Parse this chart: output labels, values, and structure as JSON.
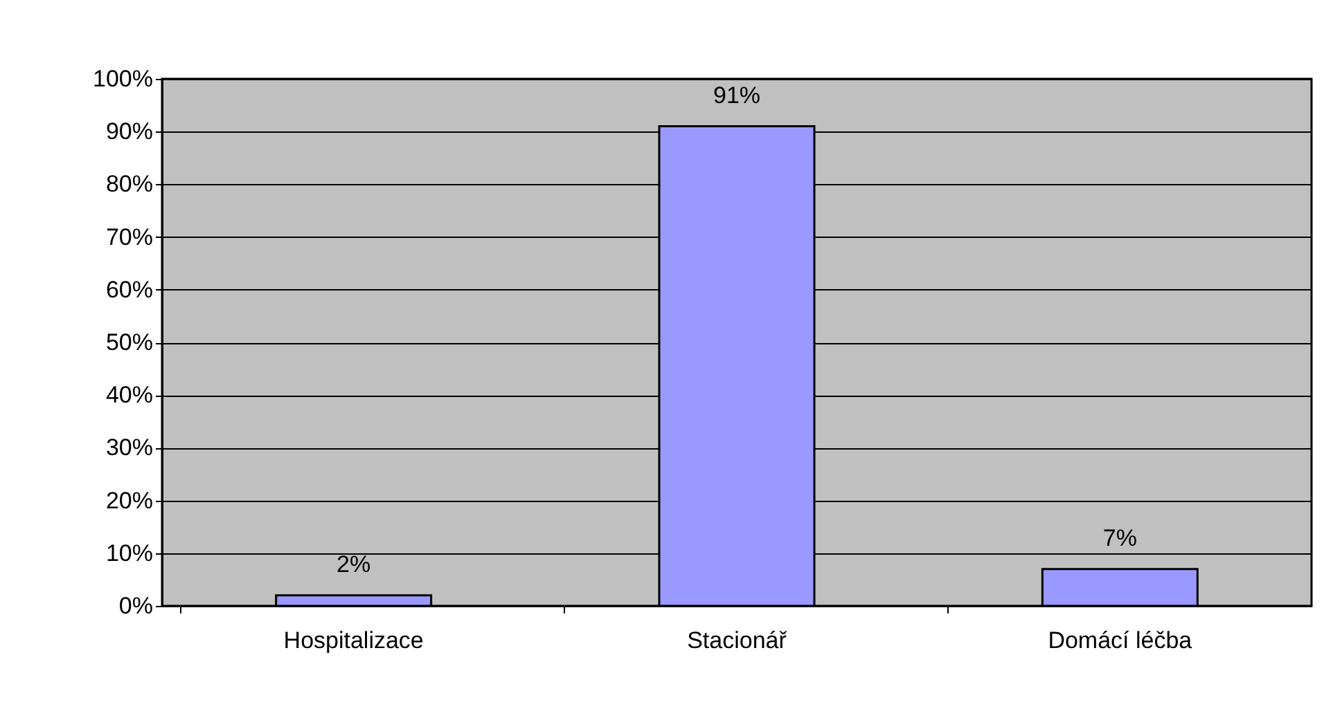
{
  "chart_data": {
    "type": "bar",
    "categories": [
      "Hospitalizace",
      "Stacionář",
      "Domácí léčba"
    ],
    "values": [
      2,
      91,
      7
    ],
    "color": "#9999ff",
    "value_labels": [
      "2%",
      "91%",
      "7%"
    ],
    "ylim": [
      0,
      100
    ],
    "yticks": [
      {
        "value": 0,
        "label": "0%"
      },
      {
        "value": 10,
        "label": "10%"
      },
      {
        "value": 20,
        "label": "20%"
      },
      {
        "value": 30,
        "label": "30%"
      },
      {
        "value": 40,
        "label": "40%"
      },
      {
        "value": 50,
        "label": "50%"
      },
      {
        "value": 60,
        "label": "60%"
      },
      {
        "value": 70,
        "label": "70%"
      },
      {
        "value": 80,
        "label": "80%"
      },
      {
        "value": 90,
        "label": "90%"
      },
      {
        "value": 100,
        "label": "100%"
      }
    ],
    "grid": "y"
  }
}
